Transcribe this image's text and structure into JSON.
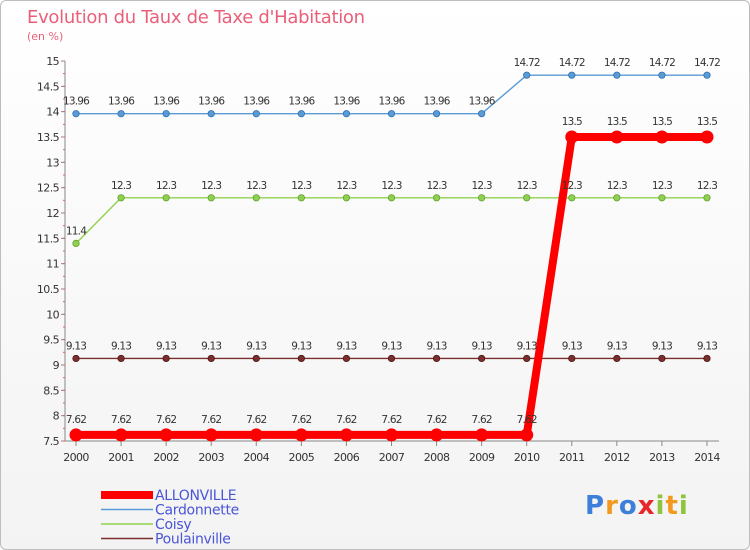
{
  "chart_data": {
    "type": "line",
    "title": "Evolution du Taux de Taxe d'Habitation",
    "ylabel": "(en %)",
    "xlabel": "",
    "ylim": [
      7.5,
      15
    ],
    "yticks": [
      "7.5",
      "8",
      "8.5",
      "9",
      "9.5",
      "10",
      "10.5",
      "11",
      "11.5",
      "12",
      "12.5",
      "13",
      "13.5",
      "14",
      "14.5",
      "15"
    ],
    "x": [
      "2000",
      "2001",
      "2002",
      "2003",
      "2004",
      "2005",
      "2006",
      "2007",
      "2008",
      "2009",
      "2010",
      "2011",
      "2012",
      "2013",
      "2014"
    ],
    "grid": false,
    "legend_position": "bottom-left",
    "series": [
      {
        "name": "ALLONVILLE",
        "color": "#ff0000",
        "values": [
          7.62,
          7.62,
          7.62,
          7.62,
          7.62,
          7.62,
          7.62,
          7.62,
          7.62,
          7.62,
          7.62,
          13.5,
          13.5,
          13.5,
          13.5
        ],
        "labels": [
          "7.62",
          "7.62",
          "7.62",
          "7.62",
          "7.62",
          "7.62",
          "7.62",
          "7.62",
          "7.62",
          "7.62",
          "7.62",
          "13.5",
          "13.5",
          "13.5",
          "13.5"
        ]
      },
      {
        "name": "Cardonnette",
        "color": "#5b9bd5",
        "values": [
          13.96,
          13.96,
          13.96,
          13.96,
          13.96,
          13.96,
          13.96,
          13.96,
          13.96,
          13.96,
          14.72,
          14.72,
          14.72,
          14.72,
          14.72
        ],
        "labels": [
          "13.96",
          "13.96",
          "13.96",
          "13.96",
          "13.96",
          "13.96",
          "13.96",
          "13.96",
          "13.96",
          "13.96",
          "14.72",
          "14.72",
          "14.72",
          "14.72",
          "14.72"
        ]
      },
      {
        "name": "Coisy",
        "color": "#8fd14f",
        "values": [
          11.4,
          12.3,
          12.3,
          12.3,
          12.3,
          12.3,
          12.3,
          12.3,
          12.3,
          12.3,
          12.3,
          12.3,
          12.3,
          12.3,
          12.3
        ],
        "labels": [
          "11.4",
          "12.3",
          "12.3",
          "12.3",
          "12.3",
          "12.3",
          "12.3",
          "12.3",
          "12.3",
          "12.3",
          "12.3",
          "12.3",
          "12.3",
          "12.3",
          "12.3"
        ]
      },
      {
        "name": "Poulainville",
        "color": "#7a2e2e",
        "values": [
          9.13,
          9.13,
          9.13,
          9.13,
          9.13,
          9.13,
          9.13,
          9.13,
          9.13,
          9.13,
          9.13,
          9.13,
          9.13,
          9.13,
          9.13
        ],
        "labels": [
          "9.13",
          "9.13",
          "9.13",
          "9.13",
          "9.13",
          "9.13",
          "9.13",
          "9.13",
          "9.13",
          "9.13",
          "9.13",
          "9.13",
          "9.13",
          "9.13",
          "9.13"
        ]
      }
    ]
  },
  "brand": {
    "letters": [
      "P",
      "r",
      "o",
      "x",
      "i",
      "t",
      "i"
    ],
    "colors": [
      "#3d7fd9",
      "#f29a1f",
      "#3d7fd9",
      "#e8262a",
      "#8fc43c",
      "#f29a1f",
      "#8fc43c"
    ]
  }
}
